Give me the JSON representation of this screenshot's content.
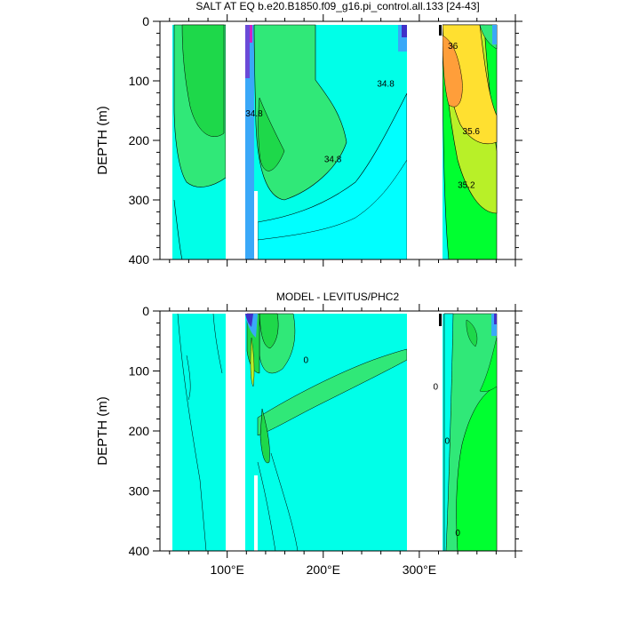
{
  "chart_data": [
    {
      "type": "contour",
      "title": "SALT AT EQ b.e20.B1850.f09_g16.pi_control.all.133 [24-43]",
      "ylabel": "DEPTH (m)",
      "y_ticks": [
        "0",
        "100",
        "200",
        "300",
        "400"
      ],
      "x_ticks": [],
      "xlim": [
        30,
        400
      ],
      "ylim": [
        0,
        400
      ],
      "contour_labels": [
        {
          "text": "34.8",
          "lon": 265,
          "depth": 105
        },
        {
          "text": "34.8",
          "lon": 128,
          "depth": 155
        },
        {
          "text": "34.8",
          "lon": 210,
          "depth": 232
        },
        {
          "text": "36",
          "lon": 335,
          "depth": 42
        },
        {
          "text": "35.6",
          "lon": 354,
          "depth": 185
        },
        {
          "text": "35.2",
          "lon": 349,
          "depth": 275
        }
      ]
    },
    {
      "type": "contour",
      "title": "MODEL - LEVITUS/PHC2",
      "ylabel": "DEPTH (m)",
      "y_ticks": [
        "0",
        "100",
        "200",
        "300",
        "400"
      ],
      "x_ticks": [
        "100°E",
        "200°E",
        "300°E"
      ],
      "xlim": [
        30,
        400
      ],
      "ylim": [
        0,
        400
      ],
      "contour_labels": [
        {
          "text": "0",
          "lon": 182,
          "depth": 82
        },
        {
          "text": "0",
          "lon": 317,
          "depth": 127
        },
        {
          "text": "0",
          "lon": 329,
          "depth": 217
        },
        {
          "text": "0",
          "lon": 340,
          "depth": 370
        }
      ]
    }
  ],
  "colors": {
    "background_field": "#00ffe8",
    "cyan": "#00ffff",
    "green_light": "#30e878",
    "green": "#1ed84a",
    "green_bright": "#00ff30",
    "yellow_green": "#b8f028",
    "yellow": "#ffe030",
    "orange": "#ff9e3a",
    "blue": "#3aa8f8"
  }
}
